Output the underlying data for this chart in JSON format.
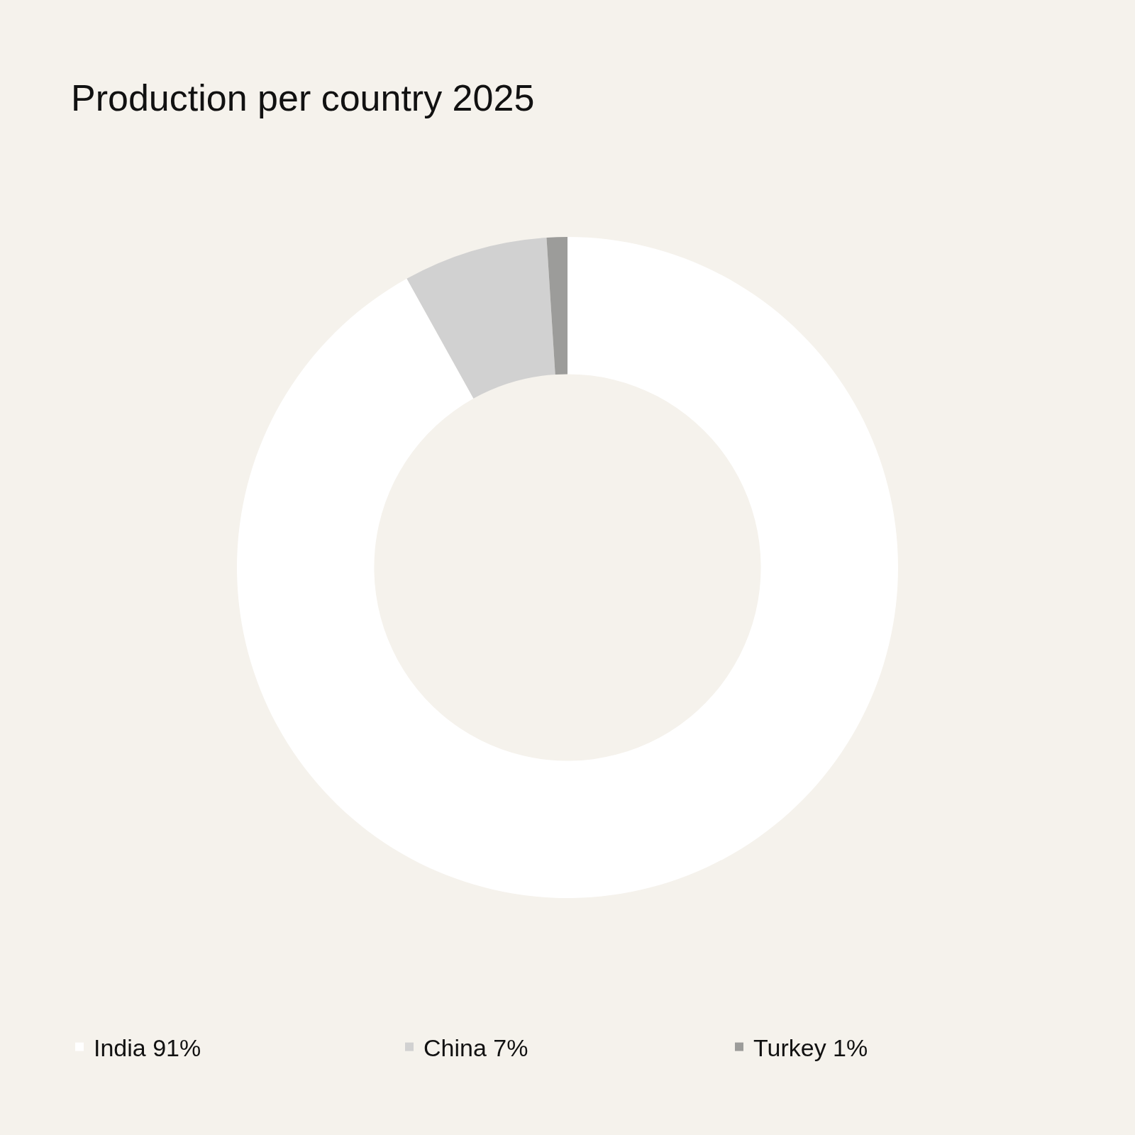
{
  "chart_data": {
    "type": "donut",
    "title": "Production per country 2025",
    "categories": [
      "India",
      "China",
      "Turkey"
    ],
    "values": [
      91,
      7,
      1
    ],
    "value_labels": [
      "91%",
      "7%",
      "1%"
    ],
    "colors": [
      "#ffffff",
      "#d1d1d1",
      "#9c9c9a"
    ],
    "legend": "bottom"
  }
}
